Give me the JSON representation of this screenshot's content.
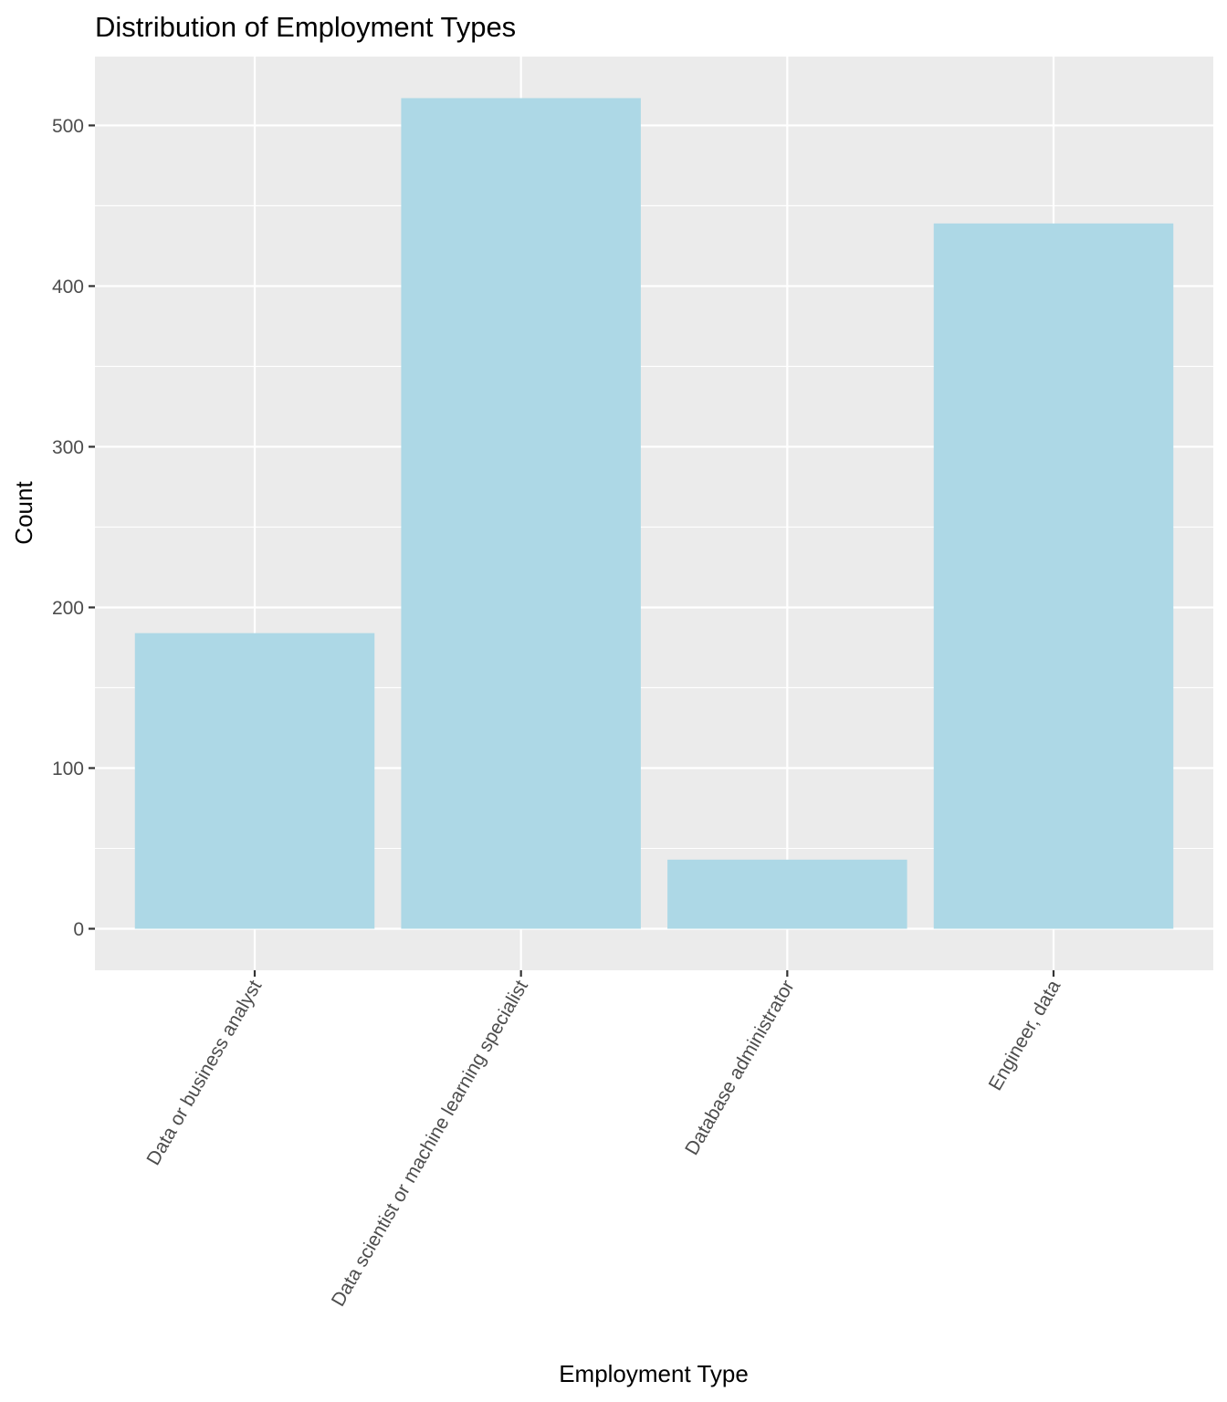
{
  "chart_data": {
    "type": "bar",
    "title": "Distribution of Employment Types",
    "xlabel": "Employment Type",
    "ylabel": "Count",
    "categories": [
      "Data or business analyst",
      "Data scientist or machine learning specialist",
      "Database administrator",
      "Engineer, data"
    ],
    "values": [
      184,
      517,
      43,
      439
    ],
    "ylim": [
      -25.85,
      542.85
    ],
    "yticks": [
      0,
      100,
      200,
      300,
      400,
      500
    ],
    "grid": true,
    "legend": "none",
    "colors": {
      "bar": "#ADD8E6",
      "panel": "#EBEBEB",
      "grid": "#FFFFFF"
    }
  }
}
